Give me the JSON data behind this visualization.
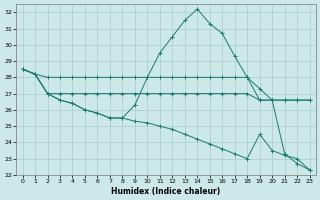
{
  "xlabel": "Humidex (Indice chaleur)",
  "background_color": "#cce8e8",
  "grid_color": "#aacccc",
  "line_color": "#1a7a6e",
  "xlim": [
    -0.5,
    23.5
  ],
  "ylim": [
    22,
    32.5
  ],
  "yticks": [
    22,
    23,
    24,
    25,
    26,
    27,
    28,
    29,
    30,
    31,
    32
  ],
  "xticks": [
    0,
    1,
    2,
    3,
    4,
    5,
    6,
    7,
    8,
    9,
    10,
    11,
    12,
    13,
    14,
    15,
    16,
    17,
    18,
    19,
    20,
    21,
    22,
    23
  ],
  "line1": [
    28.5,
    28.2,
    28.0,
    28.0,
    28.0,
    28.0,
    28.0,
    28.0,
    28.0,
    28.0,
    28.0,
    28.0,
    28.0,
    28.0,
    28.0,
    28.0,
    28.0,
    28.0,
    28.0,
    26.6,
    26.6,
    26.6,
    26.6,
    26.6
  ],
  "line2": [
    28.5,
    28.2,
    27.0,
    26.6,
    26.4,
    26.0,
    25.8,
    25.5,
    25.5,
    26.3,
    28.0,
    29.5,
    30.5,
    31.5,
    32.2,
    31.3,
    30.7,
    29.3,
    28.0,
    27.3,
    26.6,
    23.3,
    22.7,
    22.3
  ],
  "line3": [
    28.5,
    28.2,
    27.0,
    27.0,
    27.0,
    27.0,
    27.0,
    27.0,
    27.0,
    27.0,
    27.0,
    27.0,
    27.0,
    27.0,
    27.0,
    27.0,
    27.0,
    27.0,
    27.0,
    26.6,
    26.6,
    26.6,
    26.6,
    26.6
  ],
  "line4": [
    28.5,
    28.2,
    27.0,
    26.6,
    26.4,
    26.0,
    25.8,
    25.5,
    25.5,
    25.3,
    25.2,
    25.0,
    24.8,
    24.5,
    24.2,
    23.9,
    23.6,
    23.3,
    23.0,
    24.5,
    23.5,
    23.2,
    23.0,
    22.3
  ]
}
